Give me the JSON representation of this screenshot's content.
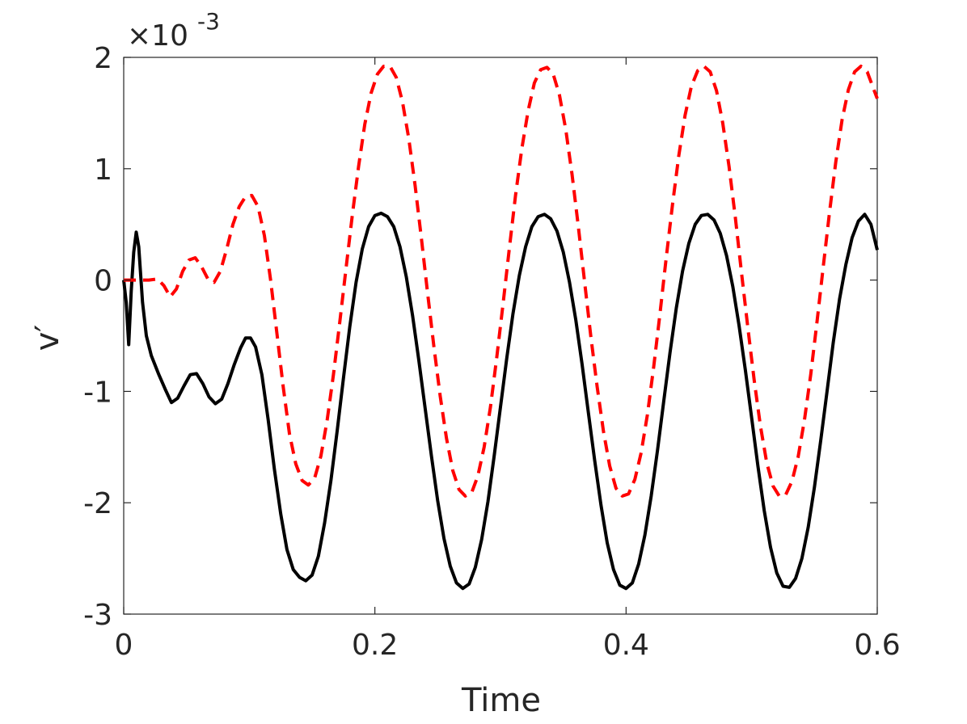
{
  "chart_data": {
    "type": "line",
    "xlabel": "Time",
    "ylabel": "v′",
    "y_exponent_base": "×10",
    "y_exponent_power": "-3",
    "xlim": [
      0,
      0.6
    ],
    "ylim": [
      -3,
      2
    ],
    "x_ticks": [
      0,
      0.2,
      0.4,
      0.6
    ],
    "x_tick_labels": [
      "0",
      "0.2",
      "0.4",
      "0.6"
    ],
    "y_ticks": [
      -3,
      -2,
      -1,
      0,
      1,
      2
    ],
    "y_tick_labels": [
      "-3",
      "-2",
      "-1",
      "0",
      "1",
      "2"
    ],
    "grid": false,
    "series": [
      {
        "style": "solid",
        "color": "#000000",
        "points": [
          [
            0.0,
            0.0
          ],
          [
            0.002,
            -0.2
          ],
          [
            0.004,
            -0.58
          ],
          [
            0.006,
            -0.1
          ],
          [
            0.008,
            0.25
          ],
          [
            0.01,
            0.43
          ],
          [
            0.012,
            0.3
          ],
          [
            0.015,
            -0.2
          ],
          [
            0.018,
            -0.5
          ],
          [
            0.022,
            -0.68
          ],
          [
            0.028,
            -0.85
          ],
          [
            0.033,
            -0.98
          ],
          [
            0.038,
            -1.1
          ],
          [
            0.043,
            -1.06
          ],
          [
            0.048,
            -0.95
          ],
          [
            0.053,
            -0.85
          ],
          [
            0.058,
            -0.84
          ],
          [
            0.063,
            -0.93
          ],
          [
            0.068,
            -1.05
          ],
          [
            0.073,
            -1.11
          ],
          [
            0.078,
            -1.07
          ],
          [
            0.083,
            -0.93
          ],
          [
            0.088,
            -0.76
          ],
          [
            0.093,
            -0.61
          ],
          [
            0.097,
            -0.52
          ],
          [
            0.101,
            -0.52
          ],
          [
            0.105,
            -0.6
          ],
          [
            0.11,
            -0.85
          ],
          [
            0.115,
            -1.25
          ],
          [
            0.12,
            -1.7
          ],
          [
            0.125,
            -2.1
          ],
          [
            0.13,
            -2.42
          ],
          [
            0.135,
            -2.6
          ],
          [
            0.14,
            -2.67
          ],
          [
            0.145,
            -2.7
          ],
          [
            0.15,
            -2.65
          ],
          [
            0.155,
            -2.48
          ],
          [
            0.16,
            -2.18
          ],
          [
            0.165,
            -1.8
          ],
          [
            0.17,
            -1.35
          ],
          [
            0.175,
            -0.88
          ],
          [
            0.18,
            -0.42
          ],
          [
            0.185,
            -0.02
          ],
          [
            0.19,
            0.28
          ],
          [
            0.195,
            0.48
          ],
          [
            0.2,
            0.58
          ],
          [
            0.205,
            0.6
          ],
          [
            0.21,
            0.57
          ],
          [
            0.215,
            0.48
          ],
          [
            0.22,
            0.3
          ],
          [
            0.225,
            0.03
          ],
          [
            0.23,
            -0.32
          ],
          [
            0.235,
            -0.72
          ],
          [
            0.24,
            -1.15
          ],
          [
            0.245,
            -1.58
          ],
          [
            0.25,
            -1.98
          ],
          [
            0.255,
            -2.32
          ],
          [
            0.26,
            -2.57
          ],
          [
            0.265,
            -2.72
          ],
          [
            0.27,
            -2.77
          ],
          [
            0.275,
            -2.73
          ],
          [
            0.28,
            -2.58
          ],
          [
            0.285,
            -2.33
          ],
          [
            0.29,
            -1.99
          ],
          [
            0.295,
            -1.58
          ],
          [
            0.3,
            -1.14
          ],
          [
            0.305,
            -0.7
          ],
          [
            0.31,
            -0.3
          ],
          [
            0.315,
            0.04
          ],
          [
            0.32,
            0.3
          ],
          [
            0.325,
            0.48
          ],
          [
            0.33,
            0.57
          ],
          [
            0.335,
            0.59
          ],
          [
            0.34,
            0.55
          ],
          [
            0.345,
            0.44
          ],
          [
            0.35,
            0.25
          ],
          [
            0.355,
            -0.02
          ],
          [
            0.36,
            -0.36
          ],
          [
            0.365,
            -0.76
          ],
          [
            0.37,
            -1.19
          ],
          [
            0.375,
            -1.62
          ],
          [
            0.38,
            -2.02
          ],
          [
            0.385,
            -2.36
          ],
          [
            0.39,
            -2.6
          ],
          [
            0.395,
            -2.74
          ],
          [
            0.4,
            -2.77
          ],
          [
            0.405,
            -2.72
          ],
          [
            0.41,
            -2.55
          ],
          [
            0.415,
            -2.29
          ],
          [
            0.42,
            -1.94
          ],
          [
            0.425,
            -1.53
          ],
          [
            0.43,
            -1.09
          ],
          [
            0.435,
            -0.65
          ],
          [
            0.44,
            -0.25
          ],
          [
            0.445,
            0.08
          ],
          [
            0.45,
            0.33
          ],
          [
            0.455,
            0.5
          ],
          [
            0.46,
            0.58
          ],
          [
            0.465,
            0.59
          ],
          [
            0.47,
            0.54
          ],
          [
            0.475,
            0.42
          ],
          [
            0.48,
            0.22
          ],
          [
            0.485,
            -0.06
          ],
          [
            0.49,
            -0.41
          ],
          [
            0.495,
            -0.81
          ],
          [
            0.5,
            -1.24
          ],
          [
            0.505,
            -1.67
          ],
          [
            0.51,
            -2.07
          ],
          [
            0.515,
            -2.4
          ],
          [
            0.52,
            -2.63
          ],
          [
            0.525,
            -2.75
          ],
          [
            0.53,
            -2.76
          ],
          [
            0.535,
            -2.68
          ],
          [
            0.54,
            -2.5
          ],
          [
            0.545,
            -2.22
          ],
          [
            0.55,
            -1.86
          ],
          [
            0.555,
            -1.44
          ],
          [
            0.56,
            -1.0
          ],
          [
            0.565,
            -0.56
          ],
          [
            0.57,
            -0.17
          ],
          [
            0.575,
            0.14
          ],
          [
            0.58,
            0.38
          ],
          [
            0.585,
            0.53
          ],
          [
            0.59,
            0.59
          ],
          [
            0.595,
            0.5
          ],
          [
            0.6,
            0.27
          ]
        ]
      },
      {
        "style": "dashed",
        "color": "#ff0000",
        "points": [
          [
            0.0,
            0.0
          ],
          [
            0.01,
            0.0
          ],
          [
            0.02,
            0.0
          ],
          [
            0.027,
            0.01
          ],
          [
            0.032,
            -0.05
          ],
          [
            0.037,
            -0.15
          ],
          [
            0.042,
            -0.08
          ],
          [
            0.047,
            0.08
          ],
          [
            0.052,
            0.18
          ],
          [
            0.057,
            0.2
          ],
          [
            0.062,
            0.12
          ],
          [
            0.067,
            0.01
          ],
          [
            0.072,
            -0.02
          ],
          [
            0.077,
            0.08
          ],
          [
            0.082,
            0.28
          ],
          [
            0.087,
            0.5
          ],
          [
            0.092,
            0.66
          ],
          [
            0.097,
            0.75
          ],
          [
            0.102,
            0.76
          ],
          [
            0.107,
            0.66
          ],
          [
            0.112,
            0.4
          ],
          [
            0.117,
            0.0
          ],
          [
            0.122,
            -0.48
          ],
          [
            0.127,
            -0.96
          ],
          [
            0.132,
            -1.38
          ],
          [
            0.137,
            -1.65
          ],
          [
            0.142,
            -1.8
          ],
          [
            0.147,
            -1.84
          ],
          [
            0.152,
            -1.78
          ],
          [
            0.157,
            -1.58
          ],
          [
            0.162,
            -1.26
          ],
          [
            0.167,
            -0.85
          ],
          [
            0.172,
            -0.38
          ],
          [
            0.177,
            0.1
          ],
          [
            0.182,
            0.58
          ],
          [
            0.187,
            1.02
          ],
          [
            0.192,
            1.4
          ],
          [
            0.197,
            1.68
          ],
          [
            0.202,
            1.85
          ],
          [
            0.207,
            1.92
          ],
          [
            0.212,
            1.92
          ],
          [
            0.217,
            1.82
          ],
          [
            0.222,
            1.6
          ],
          [
            0.227,
            1.27
          ],
          [
            0.232,
            0.85
          ],
          [
            0.237,
            0.38
          ],
          [
            0.242,
            -0.12
          ],
          [
            0.247,
            -0.6
          ],
          [
            0.252,
            -1.04
          ],
          [
            0.257,
            -1.42
          ],
          [
            0.262,
            -1.71
          ],
          [
            0.267,
            -1.88
          ],
          [
            0.272,
            -1.94
          ],
          [
            0.277,
            -1.91
          ],
          [
            0.282,
            -1.76
          ],
          [
            0.287,
            -1.5
          ],
          [
            0.292,
            -1.14
          ],
          [
            0.297,
            -0.7
          ],
          [
            0.302,
            -0.22
          ],
          [
            0.307,
            0.28
          ],
          [
            0.312,
            0.76
          ],
          [
            0.317,
            1.18
          ],
          [
            0.322,
            1.52
          ],
          [
            0.327,
            1.77
          ],
          [
            0.332,
            1.89
          ],
          [
            0.337,
            1.91
          ],
          [
            0.342,
            1.85
          ],
          [
            0.347,
            1.66
          ],
          [
            0.352,
            1.35
          ],
          [
            0.357,
            0.95
          ],
          [
            0.362,
            0.48
          ],
          [
            0.367,
            -0.02
          ],
          [
            0.372,
            -0.51
          ],
          [
            0.377,
            -0.96
          ],
          [
            0.382,
            -1.36
          ],
          [
            0.387,
            -1.67
          ],
          [
            0.392,
            -1.87
          ],
          [
            0.397,
            -1.94
          ],
          [
            0.402,
            -1.92
          ],
          [
            0.407,
            -1.79
          ],
          [
            0.412,
            -1.55
          ],
          [
            0.417,
            -1.21
          ],
          [
            0.422,
            -0.78
          ],
          [
            0.427,
            -0.3
          ],
          [
            0.432,
            0.2
          ],
          [
            0.437,
            0.68
          ],
          [
            0.442,
            1.12
          ],
          [
            0.447,
            1.48
          ],
          [
            0.452,
            1.74
          ],
          [
            0.457,
            1.88
          ],
          [
            0.462,
            1.92
          ],
          [
            0.467,
            1.87
          ],
          [
            0.472,
            1.7
          ],
          [
            0.477,
            1.41
          ],
          [
            0.482,
            1.02
          ],
          [
            0.487,
            0.56
          ],
          [
            0.492,
            0.06
          ],
          [
            0.497,
            -0.43
          ],
          [
            0.502,
            -0.9
          ],
          [
            0.507,
            -1.31
          ],
          [
            0.512,
            -1.64
          ],
          [
            0.517,
            -1.85
          ],
          [
            0.522,
            -1.94
          ],
          [
            0.527,
            -1.93
          ],
          [
            0.532,
            -1.81
          ],
          [
            0.537,
            -1.59
          ],
          [
            0.542,
            -1.26
          ],
          [
            0.547,
            -0.85
          ],
          [
            0.552,
            -0.38
          ],
          [
            0.557,
            0.12
          ],
          [
            0.562,
            0.61
          ],
          [
            0.567,
            1.06
          ],
          [
            0.572,
            1.44
          ],
          [
            0.577,
            1.71
          ],
          [
            0.582,
            1.87
          ],
          [
            0.587,
            1.92
          ],
          [
            0.592,
            1.87
          ],
          [
            0.597,
            1.72
          ],
          [
            0.6,
            1.63
          ]
        ]
      }
    ]
  }
}
